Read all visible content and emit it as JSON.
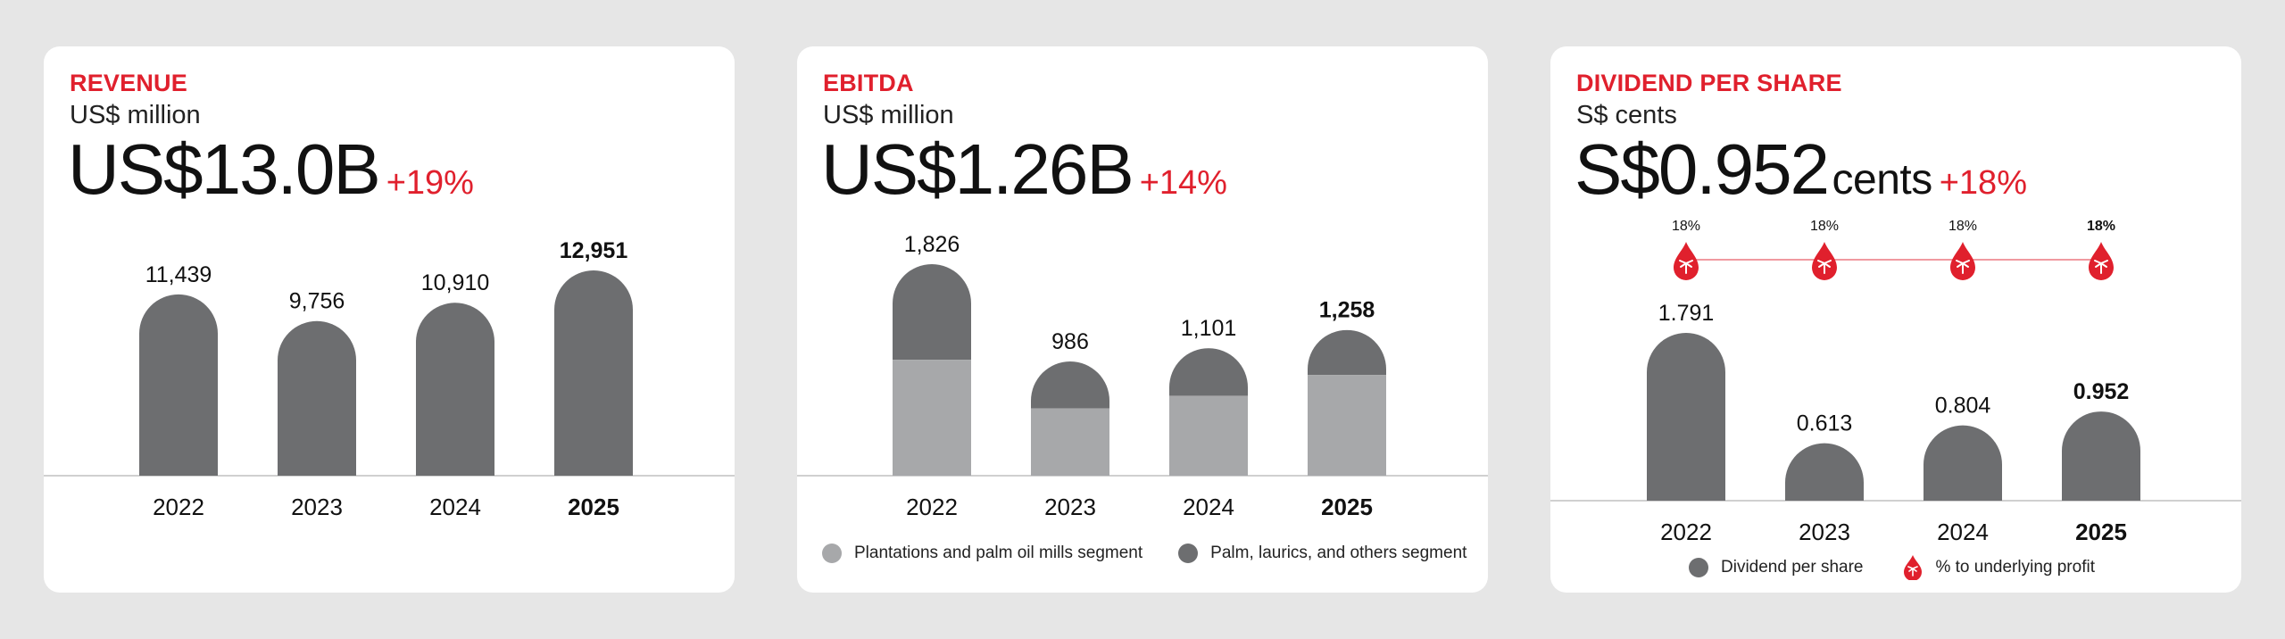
{
  "colors": {
    "accent": "#e0202d",
    "bar_dark": "#6d6e70",
    "bar_light": "#a7a8aa",
    "baseline": "#d0d0d0",
    "background": "#e6e6e6",
    "card": "#ffffff"
  },
  "cards": [
    {
      "title": "REVENUE",
      "unit": "US$ million",
      "headline_value": "US$13.0B",
      "headline_change": "+19%"
    },
    {
      "title": "EBITDA",
      "unit": "US$ million",
      "headline_value": "US$1.26B",
      "headline_change": "+14%",
      "legend": [
        {
          "label": "Plantations and palm oil mills segment",
          "color": "#a7a8aa"
        },
        {
          "label": "Palm, laurics, and others segment",
          "color": "#6d6e70"
        }
      ]
    },
    {
      "title": "DIVIDEND PER SHARE",
      "unit": "S$ cents",
      "headline_value": "S$0.952",
      "headline_suffix": "cents",
      "headline_change": "+18%",
      "legend": [
        {
          "label": "Dividend per share",
          "icon": "circle-swatch",
          "color": "#6d6e70"
        },
        {
          "label": "% to underlying profit",
          "icon": "palm-drop-icon",
          "color": "#e0202d"
        }
      ]
    }
  ],
  "chart_data": [
    {
      "type": "bar",
      "categories": [
        "2022",
        "2023",
        "2024",
        "2025"
      ],
      "values": [
        11439,
        9756,
        10910,
        12951
      ],
      "labels": [
        "11,439",
        "9,756",
        "10,910",
        "12,951"
      ],
      "highlight": "2025",
      "ylim": [
        0,
        14000
      ]
    },
    {
      "type": "bar",
      "stacked": true,
      "categories": [
        "2022",
        "2023",
        "2024",
        "2025"
      ],
      "totals": [
        1826,
        986,
        1101,
        1258
      ],
      "labels": [
        "1,826",
        "986",
        "1,101",
        "1,258"
      ],
      "series": [
        {
          "name": "Plantations and palm oil mills segment",
          "values": [
            1000,
            580,
            690,
            870
          ]
        },
        {
          "name": "Palm, laurics, and others segment",
          "values": [
            826,
            406,
            411,
            388
          ]
        }
      ],
      "highlight": "2025",
      "ylim": [
        0,
        2500
      ]
    },
    {
      "type": "bar",
      "categories": [
        "2022",
        "2023",
        "2024",
        "2025"
      ],
      "values": [
        1.791,
        0.613,
        0.804,
        0.952
      ],
      "labels": [
        "1.791",
        "0.613",
        "0.804",
        "0.952"
      ],
      "payout_ratio": [
        "18%",
        "18%",
        "18%",
        "18%"
      ],
      "highlight": "2025",
      "ylim": [
        0,
        2.1
      ]
    }
  ]
}
